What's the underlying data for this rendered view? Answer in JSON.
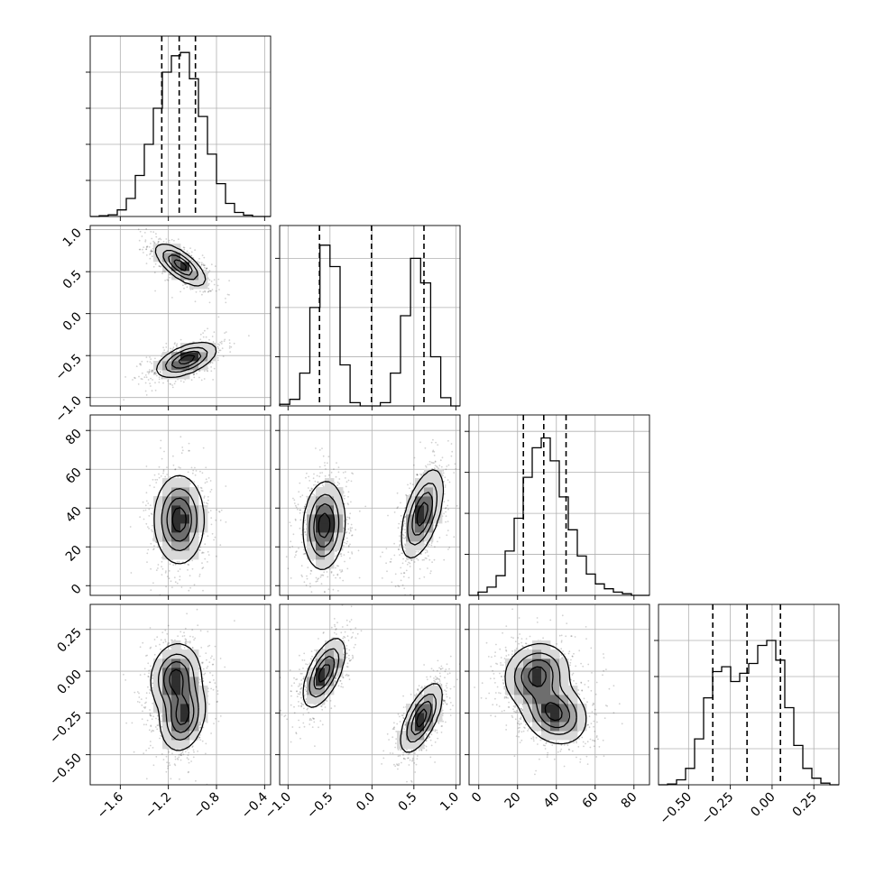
{
  "chart_data": {
    "type": "corner",
    "colors": {
      "ink": "#000000",
      "grid": "#b0b0b0",
      "background": "#ffffff"
    },
    "grid": true,
    "parameters": [
      {
        "range": [
          -1.85,
          -0.35
        ],
        "ticks": [
          -1.6,
          -1.2,
          -0.8,
          -0.4
        ],
        "tick_labels": [
          "−1.6",
          "−1.2",
          "−0.8",
          "−0.4"
        ],
        "quantiles": [
          -1.255,
          -1.11,
          -0.975
        ],
        "hist_edges": [
          -1.85,
          -1.775,
          -1.7,
          -1.625,
          -1.55,
          -1.475,
          -1.4,
          -1.325,
          -1.25,
          -1.175,
          -1.1,
          -1.025,
          -0.95,
          -0.875,
          -0.8,
          -0.725,
          -0.65,
          -0.575,
          -0.5,
          -0.425,
          -0.35
        ],
        "hist_values": [
          0,
          0.005,
          0.01,
          0.04,
          0.11,
          0.25,
          0.44,
          0.66,
          0.88,
          0.98,
          1.0,
          0.84,
          0.61,
          0.38,
          0.2,
          0.08,
          0.025,
          0.008,
          0,
          0
        ],
        "hist_ylim": [
          0,
          1.1
        ],
        "hist_yticks": [
          0.22,
          0.44,
          0.66,
          0.88
        ]
      },
      {
        "range": [
          -1.1,
          1.05
        ],
        "ticks": [
          -1.0,
          -0.5,
          0.0,
          0.5,
          1.0
        ],
        "tick_labels": [
          "−1.0",
          "−0.5",
          "0.0",
          "0.5",
          "1.0"
        ],
        "quantiles": [
          -0.625,
          -0.005,
          0.62
        ],
        "hist_edges": [
          -1.1,
          -0.98,
          -0.86,
          -0.74,
          -0.62,
          -0.5,
          -0.38,
          -0.26,
          -0.14,
          -0.02,
          0.1,
          0.22,
          0.34,
          0.46,
          0.58,
          0.7,
          0.82,
          0.94,
          1.05
        ],
        "hist_values": [
          0.01,
          0.04,
          0.2,
          0.6,
          0.98,
          0.85,
          0.25,
          0.02,
          0,
          0,
          0.02,
          0.2,
          0.55,
          0.9,
          0.75,
          0.3,
          0.05,
          0
        ],
        "hist_ylim": [
          0,
          1.1
        ],
        "hist_yticks": [
          0.3,
          0.6,
          0.9
        ]
      },
      {
        "range": [
          -5,
          88
        ],
        "ticks": [
          0,
          20,
          40,
          60,
          80
        ],
        "tick_labels": [
          "0",
          "20",
          "40",
          "60",
          "80"
        ],
        "quantiles": [
          23,
          33.5,
          45
        ],
        "hist_edges": [
          -5,
          -0.35,
          4.3,
          8.95,
          13.6,
          18.25,
          22.9,
          27.55,
          32.2,
          36.85,
          41.5,
          46.15,
          50.8,
          55.45,
          60.1,
          64.75,
          69.4,
          74.05,
          78.7,
          83.35,
          88
        ],
        "hist_values": [
          0,
          0.02,
          0.05,
          0.12,
          0.27,
          0.47,
          0.72,
          0.9,
          0.96,
          0.82,
          0.6,
          0.4,
          0.24,
          0.13,
          0.07,
          0.04,
          0.02,
          0.01,
          0,
          0
        ],
        "hist_ylim": [
          0,
          1.1
        ],
        "hist_yticks": [
          0.25,
          0.5,
          0.75,
          1.0
        ]
      },
      {
        "range": [
          -0.68,
          0.4
        ],
        "ticks": [
          -0.5,
          -0.25,
          0.0,
          0.25
        ],
        "tick_labels": [
          "−0.50",
          "−0.25",
          "0.00",
          "0.25"
        ],
        "quantiles": [
          -0.355,
          -0.15,
          0.05
        ],
        "hist_edges": [
          -0.68,
          -0.626,
          -0.572,
          -0.518,
          -0.464,
          -0.41,
          -0.356,
          -0.302,
          -0.248,
          -0.194,
          -0.14,
          -0.086,
          -0.032,
          0.022,
          0.076,
          0.13,
          0.184,
          0.238,
          0.292,
          0.346,
          0.4
        ],
        "hist_values": [
          0,
          0.005,
          0.03,
          0.1,
          0.28,
          0.53,
          0.69,
          0.72,
          0.63,
          0.68,
          0.74,
          0.85,
          0.88,
          0.76,
          0.47,
          0.24,
          0.1,
          0.04,
          0.01,
          0
        ],
        "hist_ylim": [
          0,
          1.1
        ],
        "hist_yticks": [
          0.22,
          0.44,
          0.66,
          0.88
        ]
      }
    ],
    "pairs": [
      {
        "x": 0,
        "y": 1,
        "clusters": [
          {
            "cx": -1.1,
            "cy": 0.58,
            "sx": 0.1,
            "sy": 0.12,
            "rho": -0.7
          },
          {
            "cx": -1.05,
            "cy": -0.55,
            "sx": 0.12,
            "sy": 0.1,
            "rho": 0.55
          }
        ]
      },
      {
        "x": 0,
        "y": 2,
        "clusters": [
          {
            "cx": -1.11,
            "cy": 34,
            "sx": 0.1,
            "sy": 11,
            "rho": 0.0
          }
        ]
      },
      {
        "x": 0,
        "y": 3,
        "clusters": [
          {
            "cx": -1.14,
            "cy": -0.04,
            "sx": 0.1,
            "sy": 0.1,
            "rho": 0.1
          },
          {
            "cx": -1.08,
            "cy": -0.27,
            "sx": 0.09,
            "sy": 0.1,
            "rho": 0.2
          }
        ]
      },
      {
        "x": 1,
        "y": 2,
        "clusters": [
          {
            "cx": -0.57,
            "cy": 31,
            "sx": 0.12,
            "sy": 11,
            "rho": 0.1
          },
          {
            "cx": 0.6,
            "cy": 37,
            "sx": 0.12,
            "sy": 11,
            "rho": 0.55
          }
        ]
      },
      {
        "x": 1,
        "y": 3,
        "clusters": [
          {
            "cx": -0.57,
            "cy": -0.01,
            "sx": 0.12,
            "sy": 0.1,
            "rho": 0.6
          },
          {
            "cx": 0.59,
            "cy": -0.28,
            "sx": 0.12,
            "sy": 0.1,
            "rho": 0.65
          }
        ]
      },
      {
        "x": 2,
        "y": 3,
        "clusters": [
          {
            "cx": 30,
            "cy": -0.02,
            "sx": 8,
            "sy": 0.09,
            "rho": 0.1
          },
          {
            "cx": 39,
            "cy": -0.25,
            "sx": 8,
            "sy": 0.09,
            "rho": -0.2
          }
        ]
      }
    ],
    "contour_levels": [
      0.12,
      0.35,
      0.6,
      0.85
    ],
    "contour_fill_grays": [
      "#f5f5f5",
      "#d9d9d9",
      "#a6a6a6",
      "#6e6e6e",
      "#2f2f2f"
    ]
  }
}
